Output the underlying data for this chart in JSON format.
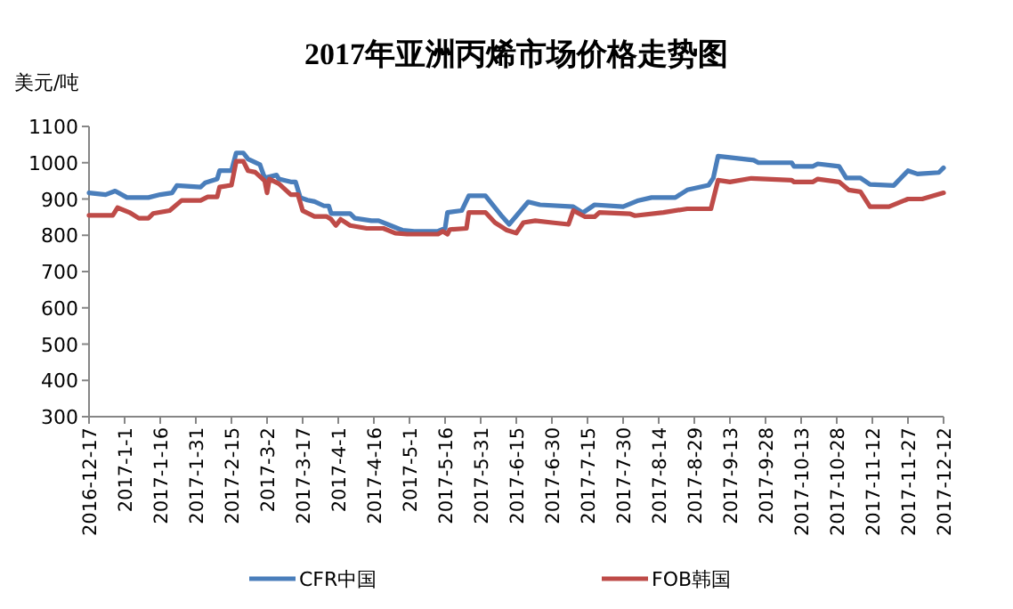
{
  "chart_data": {
    "type": "line",
    "title": "2017年亚洲丙烯市场价格走势图",
    "ylabel": "美元/吨",
    "legend": "bottom",
    "marker": "none",
    "line_style": "solid",
    "grid": false,
    "xlim": [
      "2016-12-17",
      "2017-12-12"
    ],
    "xticks": [
      {
        "value": "2016-12-17",
        "label": "2016-12-17"
      },
      {
        "value": "2017-01-01",
        "label": "2017-1-1"
      },
      {
        "value": "2017-01-16",
        "label": "2017-1-16"
      },
      {
        "value": "2017-01-31",
        "label": "2017-1-31"
      },
      {
        "value": "2017-02-15",
        "label": "2017-2-15"
      },
      {
        "value": "2017-03-02",
        "label": "2017-3-2"
      },
      {
        "value": "2017-03-17",
        "label": "2017-3-17"
      },
      {
        "value": "2017-04-01",
        "label": "2017-4-1"
      },
      {
        "value": "2017-04-16",
        "label": "2017-4-16"
      },
      {
        "value": "2017-05-01",
        "label": "2017-5-1"
      },
      {
        "value": "2017-05-16",
        "label": "2017-5-16"
      },
      {
        "value": "2017-05-31",
        "label": "2017-5-31"
      },
      {
        "value": "2017-06-15",
        "label": "2017-6-15"
      },
      {
        "value": "2017-06-30",
        "label": "2017-6-30"
      },
      {
        "value": "2017-07-15",
        "label": "2017-7-15"
      },
      {
        "value": "2017-07-30",
        "label": "2017-7-30"
      },
      {
        "value": "2017-08-14",
        "label": "2017-8-14"
      },
      {
        "value": "2017-08-29",
        "label": "2017-8-29"
      },
      {
        "value": "2017-09-13",
        "label": "2017-9-13"
      },
      {
        "value": "2017-09-28",
        "label": "2017-9-28"
      },
      {
        "value": "2017-10-13",
        "label": "2017-10-13"
      },
      {
        "value": "2017-10-28",
        "label": "2017-10-28"
      },
      {
        "value": "2017-11-12",
        "label": "2017-11-12"
      },
      {
        "value": "2017-11-27",
        "label": "2017-11-27"
      },
      {
        "value": "2017-12-12",
        "label": "2017-12-12"
      }
    ],
    "ylim": [
      300,
      1100
    ],
    "yticks": [
      300,
      400,
      500,
      600,
      700,
      800,
      900,
      1000,
      1100
    ],
    "series": [
      {
        "name": "CFR中国",
        "color": "#4a7ebb",
        "x": [
          "2016-12-17",
          "2016-12-24",
          "2016-12-28",
          "2017-01-02",
          "2017-01-11",
          "2017-01-16",
          "2017-01-21",
          "2017-01-23",
          "2017-02-02",
          "2017-02-04",
          "2017-02-09",
          "2017-02-10",
          "2017-02-15",
          "2017-02-17",
          "2017-02-20",
          "2017-02-22",
          "2017-02-27",
          "2017-03-01",
          "2017-03-06",
          "2017-03-07",
          "2017-03-12",
          "2017-03-14",
          "2017-03-16",
          "2017-03-19",
          "2017-03-22",
          "2017-03-26",
          "2017-03-28",
          "2017-03-29",
          "2017-04-06",
          "2017-04-08",
          "2017-04-15",
          "2017-04-18",
          "2017-04-23",
          "2017-04-28",
          "2017-05-03",
          "2017-05-13",
          "2017-05-16",
          "2017-05-17",
          "2017-05-23",
          "2017-05-26",
          "2017-06-02",
          "2017-06-09",
          "2017-06-12",
          "2017-06-20",
          "2017-06-25",
          "2017-07-09",
          "2017-07-13",
          "2017-07-18",
          "2017-07-30",
          "2017-08-05",
          "2017-08-11",
          "2017-08-21",
          "2017-08-26",
          "2017-09-04",
          "2017-09-06",
          "2017-09-08",
          "2017-09-23",
          "2017-09-25",
          "2017-10-09",
          "2017-10-10",
          "2017-10-18",
          "2017-10-20",
          "2017-10-29",
          "2017-11-01",
          "2017-11-07",
          "2017-11-11",
          "2017-11-21",
          "2017-11-27",
          "2017-12-01",
          "2017-12-10",
          "2017-12-12"
        ],
        "values": [
          917,
          912,
          922,
          904,
          904,
          912,
          917,
          937,
          933,
          945,
          955,
          978,
          978,
          1027,
          1027,
          1010,
          995,
          958,
          966,
          955,
          947,
          947,
          904,
          897,
          893,
          881,
          881,
          860,
          860,
          847,
          840,
          840,
          827,
          814,
          811,
          811,
          819,
          863,
          868,
          909,
          909,
          852,
          830,
          892,
          884,
          879,
          862,
          884,
          879,
          895,
          904,
          904,
          925,
          938,
          958,
          1018,
          1007,
          1000,
          1000,
          990,
          990,
          997,
          990,
          958,
          958,
          940,
          937,
          978,
          969,
          973,
          986
        ]
      },
      {
        "name": "FOB韩国",
        "color": "#be4b48",
        "x": [
          "2016-12-17",
          "2016-12-27",
          "2016-12-29",
          "2017-01-03",
          "2017-01-07",
          "2017-01-11",
          "2017-01-13",
          "2017-01-20",
          "2017-01-25",
          "2017-02-02",
          "2017-02-05",
          "2017-02-09",
          "2017-02-10",
          "2017-02-15",
          "2017-02-17",
          "2017-02-20",
          "2017-02-22",
          "2017-02-25",
          "2017-03-01",
          "2017-03-02",
          "2017-03-03",
          "2017-03-07",
          "2017-03-12",
          "2017-03-15",
          "2017-03-17",
          "2017-03-22",
          "2017-03-27",
          "2017-03-29",
          "2017-03-31",
          "2017-04-02",
          "2017-04-06",
          "2017-04-13",
          "2017-04-20",
          "2017-04-25",
          "2017-04-30",
          "2017-05-13",
          "2017-05-15",
          "2017-05-17",
          "2017-05-18",
          "2017-05-25",
          "2017-05-26",
          "2017-06-02",
          "2017-06-06",
          "2017-06-11",
          "2017-06-15",
          "2017-06-18",
          "2017-06-23",
          "2017-06-30",
          "2017-07-07",
          "2017-07-09",
          "2017-07-14",
          "2017-07-18",
          "2017-07-20",
          "2017-08-02",
          "2017-08-04",
          "2017-08-16",
          "2017-08-26",
          "2017-09-05",
          "2017-09-08",
          "2017-09-13",
          "2017-09-22",
          "2017-10-09",
          "2017-10-10",
          "2017-10-18",
          "2017-10-20",
          "2017-10-29",
          "2017-11-02",
          "2017-11-07",
          "2017-11-11",
          "2017-11-19",
          "2017-11-27",
          "2017-12-03",
          "2017-12-12"
        ],
        "values": [
          855,
          855,
          876,
          863,
          847,
          847,
          860,
          868,
          896,
          896,
          906,
          906,
          933,
          938,
          1004,
          1004,
          978,
          974,
          950,
          917,
          955,
          942,
          912,
          912,
          868,
          852,
          852,
          844,
          827,
          844,
          827,
          819,
          819,
          806,
          803,
          803,
          811,
          803,
          816,
          819,
          863,
          863,
          835,
          814,
          806,
          835,
          840,
          835,
          830,
          868,
          851,
          851,
          863,
          859,
          854,
          863,
          873,
          873,
          952,
          947,
          957,
          952,
          947,
          947,
          955,
          947,
          925,
          920,
          879,
          879,
          900,
          900,
          917
        ]
      }
    ]
  }
}
